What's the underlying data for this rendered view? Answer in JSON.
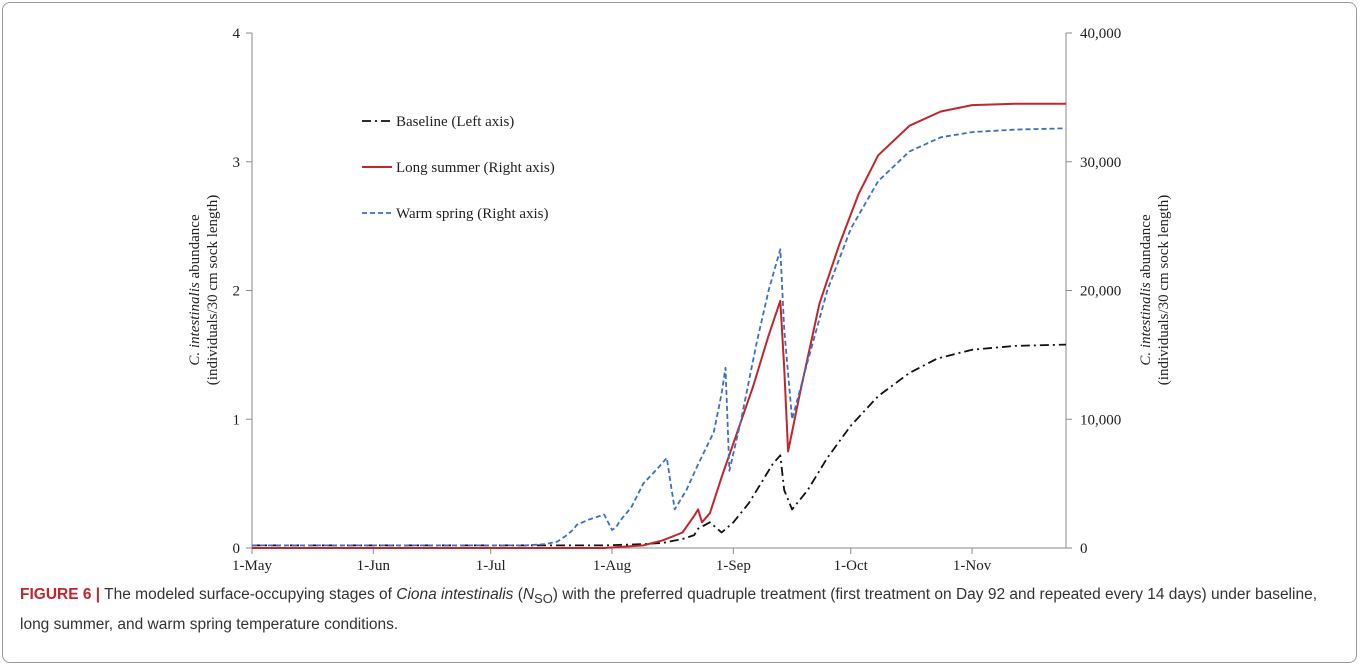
{
  "chart_data": {
    "type": "line",
    "x_ticks": [
      "1-May",
      "1-Jun",
      "1-Jul",
      "1-Aug",
      "1-Sep",
      "1-Oct",
      "1-Nov"
    ],
    "x_tick_days": [
      0,
      31,
      61,
      92,
      123,
      153,
      184
    ],
    "xlim": [
      0,
      208
    ],
    "y_left": {
      "label_italic": "C. intestinalis",
      "label_rest": " abundance",
      "label_line2": "(individuals/30 cm sock length)",
      "lim": [
        0,
        4
      ],
      "ticks": [
        "0",
        "1",
        "2",
        "3",
        "4"
      ]
    },
    "y_right": {
      "label_italic": "C. intestinalis",
      "label_rest": " abundance",
      "label_line2": "(individuals/30 cm sock length)",
      "lim": [
        0,
        40000
      ],
      "ticks": [
        "0",
        "10,000",
        "20,000",
        "30,000",
        "40,000"
      ]
    },
    "legend_position": "upper-left",
    "series": [
      {
        "name": "Baseline (Left axis)",
        "axis": "left",
        "color": "#111111",
        "style": "dashdot",
        "x": [
          0,
          60,
          80,
          90,
          100,
          105,
          110,
          113,
          114,
          117,
          120,
          123,
          127,
          130,
          133,
          135,
          136,
          138,
          142,
          147,
          153,
          160,
          168,
          175,
          184,
          195,
          208
        ],
        "y": [
          0.02,
          0.02,
          0.02,
          0.02,
          0.03,
          0.04,
          0.07,
          0.1,
          0.15,
          0.2,
          0.12,
          0.2,
          0.35,
          0.5,
          0.65,
          0.72,
          0.45,
          0.3,
          0.45,
          0.7,
          0.95,
          1.18,
          1.36,
          1.47,
          1.54,
          1.57,
          1.58
        ]
      },
      {
        "name": "Long summer (Right axis)",
        "axis": "right",
        "color": "#c0262d",
        "style": "solid",
        "x": [
          0,
          80,
          90,
          100,
          105,
          110,
          113,
          114,
          115,
          117,
          120,
          124,
          128,
          132,
          135,
          136,
          137,
          140,
          145,
          150,
          155,
          160,
          168,
          176,
          184,
          195,
          208
        ],
        "y": [
          0,
          0,
          0,
          200,
          600,
          1200,
          2500,
          3000,
          2000,
          2700,
          5500,
          9000,
          12500,
          16500,
          19200,
          14000,
          7500,
          12000,
          19000,
          23500,
          27500,
          30500,
          32800,
          33900,
          34400,
          34500,
          34500
        ]
      },
      {
        "name": "Warm spring (Right axis)",
        "axis": "right",
        "color": "#3b6fc4",
        "style": "dashed",
        "x": [
          0,
          60,
          70,
          75,
          78,
          80,
          82,
          83,
          86,
          90,
          92,
          93,
          94,
          97,
          100,
          104,
          106,
          107,
          108,
          111,
          114,
          118,
          120,
          121,
          122,
          125,
          129,
          132,
          135,
          136,
          138,
          142,
          147,
          153,
          160,
          168,
          176,
          184,
          195,
          208
        ],
        "y": [
          200,
          200,
          200,
          300,
          500,
          900,
          1400,
          1800,
          2200,
          2600,
          1400,
          1600,
          2100,
          3200,
          5000,
          6300,
          7000,
          5000,
          3000,
          4500,
          6500,
          9000,
          12000,
          14000,
          6000,
          10000,
          16000,
          20000,
          23200,
          17000,
          10000,
          14500,
          20000,
          24800,
          28500,
          30800,
          31900,
          32300,
          32500,
          32600
        ]
      }
    ]
  },
  "caption": {
    "figure_label": "FIGURE 6 |",
    "text_1": " The modeled surface-occupying stages of ",
    "species_italic": "Ciona intestinalis",
    "text_2": " (",
    "symbol_italic": "N",
    "symbol_sub": "SO",
    "text_3": ") with the preferred quadruple treatment (first treatment on Day 92 and repeated every 14 days) under baseline, long summer, and warm spring temperature conditions."
  }
}
